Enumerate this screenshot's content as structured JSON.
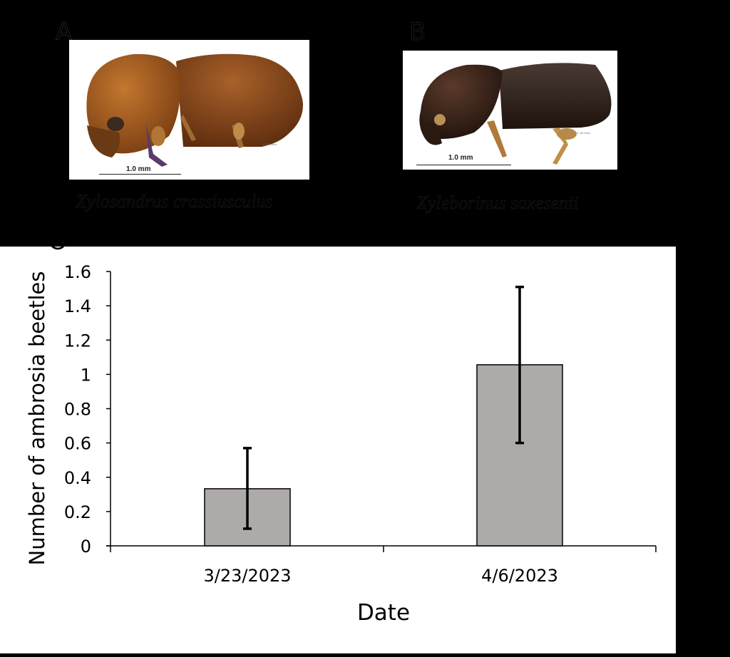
{
  "panels": {
    "a": {
      "letter": "A",
      "species": "Xylosandrus crassiusculus",
      "scale_label": "1.0 mm",
      "credit": "© Jiri Hulcr",
      "body_color": "#8a4a1c"
    },
    "b": {
      "letter": "B",
      "species": "Xyleborinus saxesenii",
      "scale_label": "1.0 mm",
      "credit": "© Jiri Hulcr",
      "body_color": "#3a2418"
    },
    "c": {
      "letter": "C"
    }
  },
  "chart_data": {
    "type": "bar",
    "title": "",
    "xlabel": "Date",
    "ylabel": "Number of ambrosia beetles",
    "categories": [
      "3/23/2023",
      "4/6/2023"
    ],
    "values": [
      0.333,
      1.056
    ],
    "error_bars": {
      "upper": [
        0.57,
        1.51
      ],
      "lower": [
        0.1,
        0.6
      ]
    },
    "ylim": [
      0,
      1.6
    ],
    "yticks": [
      "0",
      "0.2",
      "0.4",
      "0.6",
      "0.8",
      "1",
      "1.2",
      "1.4",
      "1.6"
    ],
    "grid": false,
    "legend": null,
    "bar_color": "#aeaaa9",
    "bar_edge_color": "#000000"
  }
}
